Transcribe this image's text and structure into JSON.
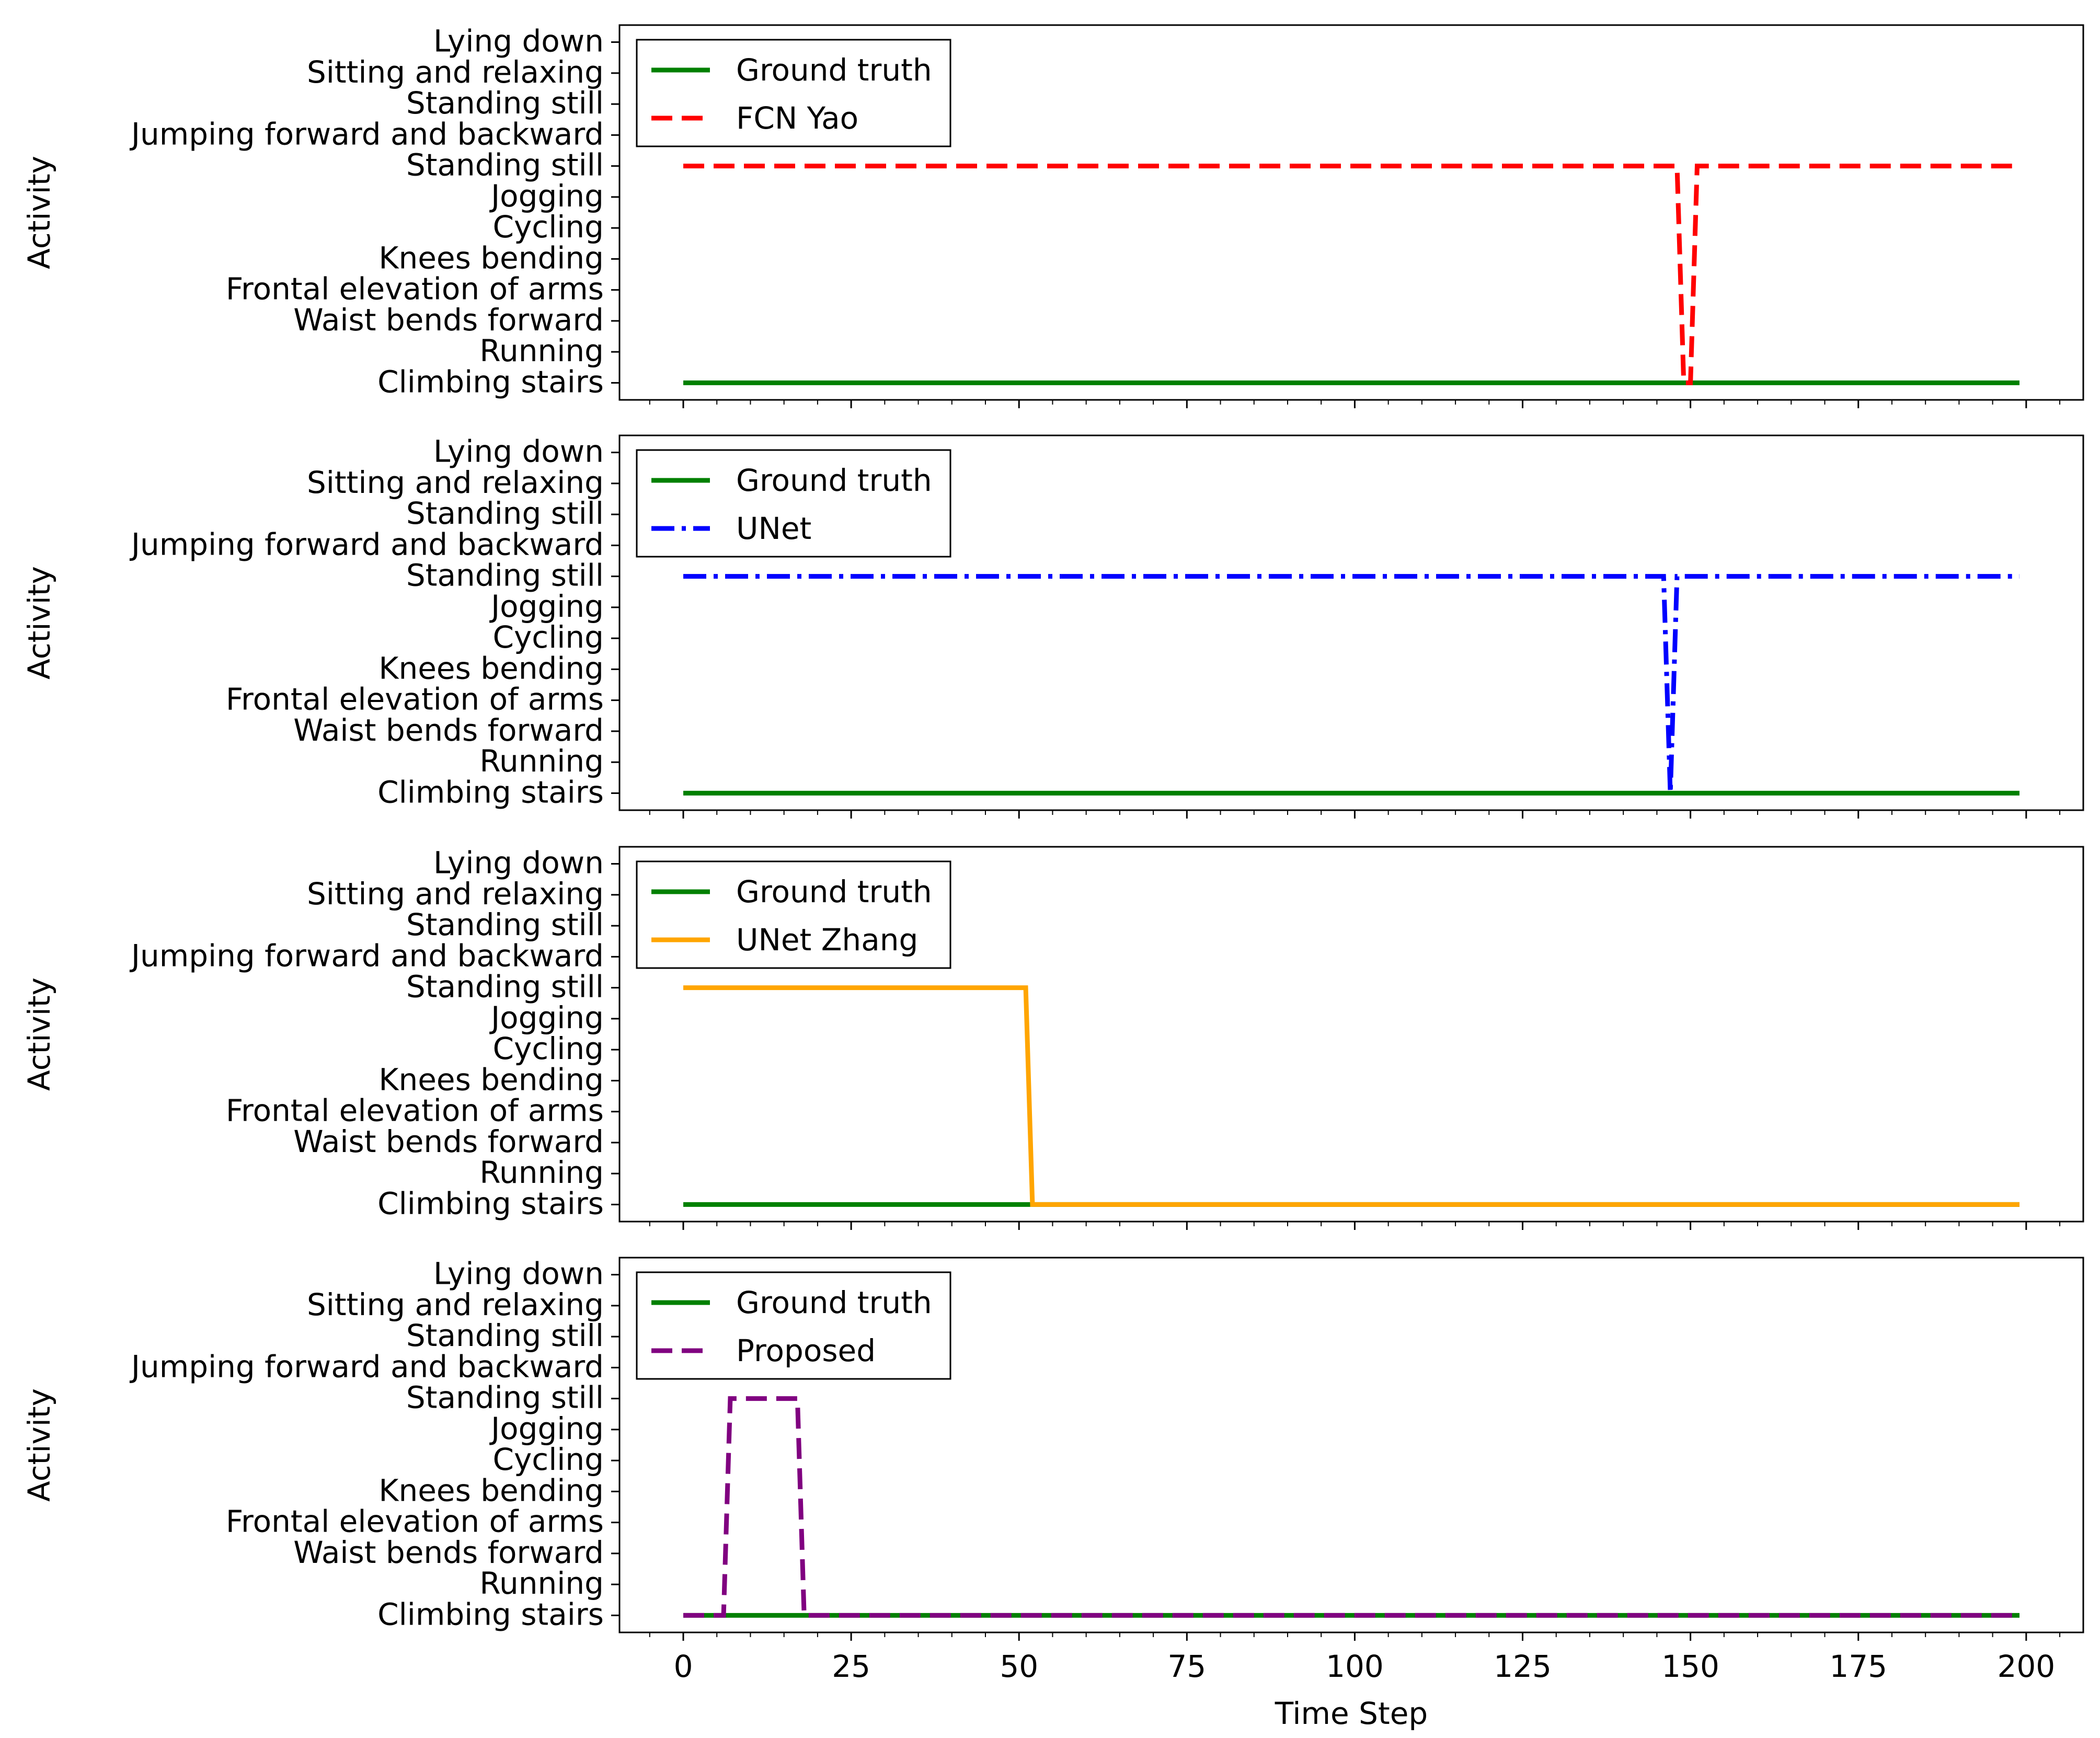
{
  "chart_data": {
    "type": "line",
    "xlabel": "Time Step",
    "ylabel": "Activity",
    "xlim": [
      -9.5,
      208.5
    ],
    "x_ticks": [
      0,
      25,
      50,
      75,
      100,
      125,
      150,
      175,
      200
    ],
    "activity_labels": [
      "Climbing stairs",
      "Running",
      "Waist bends forward",
      "Frontal elevation of arms",
      "Knees bending",
      "Cycling",
      "Jogging",
      "Standing still",
      "Jumping forward and backward",
      "Standing still",
      "Sitting and relaxing",
      "Lying down"
    ],
    "ylim": [
      -0.55,
      11.55
    ],
    "panels": [
      {
        "legend": "upper left",
        "series": [
          {
            "name": "Ground truth",
            "color": "#008000",
            "style": "solid",
            "x": [
              0,
              199
            ],
            "y": [
              0,
              0
            ]
          },
          {
            "name": "FCN Yao",
            "color": "#ff0000",
            "style": "dashed",
            "x": [
              0,
              148,
              149,
              150,
              151,
              199
            ],
            "y": [
              7,
              7,
              0,
              0,
              7,
              7
            ]
          }
        ]
      },
      {
        "legend": "upper left",
        "series": [
          {
            "name": "Ground truth",
            "color": "#008000",
            "style": "solid",
            "x": [
              0,
              199
            ],
            "y": [
              0,
              0
            ]
          },
          {
            "name": "UNet",
            "color": "#0000ff",
            "style": "dashdot",
            "x": [
              0,
              146,
              147,
              148,
              199
            ],
            "y": [
              7,
              7,
              0,
              7,
              7
            ]
          }
        ]
      },
      {
        "legend": "upper left",
        "series": [
          {
            "name": "Ground truth",
            "color": "#008000",
            "style": "solid",
            "x": [
              0,
              199
            ],
            "y": [
              0,
              0
            ]
          },
          {
            "name": "UNet Zhang",
            "color": "#ffa500",
            "style": "solid",
            "x": [
              0,
              51,
              52,
              199
            ],
            "y": [
              7,
              7,
              0,
              0
            ]
          }
        ]
      },
      {
        "legend": "upper left",
        "series": [
          {
            "name": "Ground truth",
            "color": "#008000",
            "style": "solid",
            "x": [
              0,
              199
            ],
            "y": [
              0,
              0
            ]
          },
          {
            "name": "Proposed",
            "color": "#800080",
            "style": "dashed",
            "x": [
              0,
              6,
              7,
              17,
              18,
              199
            ],
            "y": [
              0,
              0,
              7,
              7,
              0,
              0
            ]
          }
        ]
      }
    ]
  }
}
